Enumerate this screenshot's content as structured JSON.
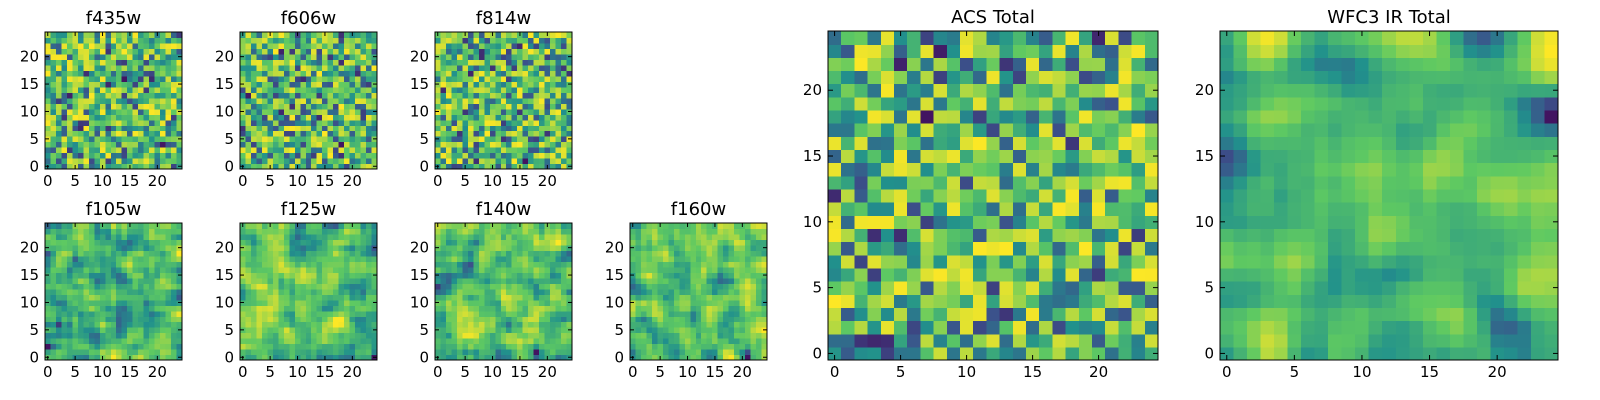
{
  "figure": {
    "colormap": "viridis",
    "colors": {
      "dark": "#440154",
      "blue": "#3b528b",
      "teal": "#21918c",
      "green": "#5ec962",
      "yellow": "#fde725"
    }
  },
  "chart_data": [
    {
      "id": "f435w",
      "type": "heatmap",
      "title": "f435w",
      "grid_size": 25,
      "xticks": [
        "0",
        "5",
        "10",
        "15",
        "20"
      ],
      "yticks": [
        "0",
        "5",
        "10",
        "15",
        "20"
      ],
      "xlim": [
        0,
        25
      ],
      "ylim": [
        0,
        25
      ],
      "value_range": [
        0,
        1
      ],
      "seed": 11,
      "smooth": 0
    },
    {
      "id": "f606w",
      "type": "heatmap",
      "title": "f606w",
      "grid_size": 25,
      "xticks": [
        "0",
        "5",
        "10",
        "15",
        "20"
      ],
      "yticks": [
        "0",
        "5",
        "10",
        "15",
        "20"
      ],
      "xlim": [
        0,
        25
      ],
      "ylim": [
        0,
        25
      ],
      "value_range": [
        0,
        1
      ],
      "seed": 23,
      "smooth": 0
    },
    {
      "id": "f814w",
      "type": "heatmap",
      "title": "f814w",
      "grid_size": 25,
      "xticks": [
        "0",
        "5",
        "10",
        "15",
        "20"
      ],
      "yticks": [
        "0",
        "5",
        "10",
        "15",
        "20"
      ],
      "xlim": [
        0,
        25
      ],
      "ylim": [
        0,
        25
      ],
      "value_range": [
        0,
        1
      ],
      "seed": 37,
      "smooth": 0
    },
    {
      "id": "f105w",
      "type": "heatmap",
      "title": "f105w",
      "grid_size": 25,
      "xticks": [
        "0",
        "5",
        "10",
        "15",
        "20"
      ],
      "yticks": [
        "0",
        "5",
        "10",
        "15",
        "20"
      ],
      "xlim": [
        0,
        25
      ],
      "ylim": [
        0,
        25
      ],
      "value_range": [
        0,
        1
      ],
      "seed": 41,
      "smooth": 1
    },
    {
      "id": "f125w",
      "type": "heatmap",
      "title": "f125w",
      "grid_size": 25,
      "xticks": [
        "0",
        "5",
        "10",
        "15",
        "20"
      ],
      "yticks": [
        "0",
        "5",
        "10",
        "15",
        "20"
      ],
      "xlim": [
        0,
        25
      ],
      "ylim": [
        0,
        25
      ],
      "value_range": [
        0,
        1
      ],
      "seed": 53,
      "smooth": 1
    },
    {
      "id": "f140w",
      "type": "heatmap",
      "title": "f140w",
      "grid_size": 25,
      "xticks": [
        "0",
        "5",
        "10",
        "15",
        "20"
      ],
      "yticks": [
        "0",
        "5",
        "10",
        "15",
        "20"
      ],
      "xlim": [
        0,
        25
      ],
      "ylim": [
        0,
        25
      ],
      "value_range": [
        0,
        1
      ],
      "seed": 67,
      "smooth": 1
    },
    {
      "id": "f160w",
      "type": "heatmap",
      "title": "f160w",
      "grid_size": 25,
      "xticks": [
        "0",
        "5",
        "10",
        "15",
        "20"
      ],
      "yticks": [
        "0",
        "5",
        "10",
        "15",
        "20"
      ],
      "xlim": [
        0,
        25
      ],
      "ylim": [
        0,
        25
      ],
      "value_range": [
        0,
        1
      ],
      "seed": 79,
      "smooth": 1
    },
    {
      "id": "acs_total",
      "type": "heatmap",
      "title": "ACS Total",
      "grid_size": 25,
      "xticks": [
        "0",
        "5",
        "10",
        "15",
        "20"
      ],
      "yticks": [
        "0",
        "5",
        "10",
        "15",
        "20"
      ],
      "xlim": [
        0,
        25
      ],
      "ylim": [
        0,
        25
      ],
      "value_range": [
        0,
        1
      ],
      "seed": 97,
      "smooth": 0
    },
    {
      "id": "wfc3_ir_total",
      "type": "heatmap",
      "title": "WFC3 IR Total",
      "grid_size": 25,
      "xticks": [
        "0",
        "5",
        "10",
        "15",
        "20"
      ],
      "yticks": [
        "0",
        "5",
        "10",
        "15",
        "20"
      ],
      "xlim": [
        0,
        25
      ],
      "ylim": [
        0,
        25
      ],
      "value_range": [
        0,
        1
      ],
      "seed": 113,
      "smooth": 2
    }
  ]
}
